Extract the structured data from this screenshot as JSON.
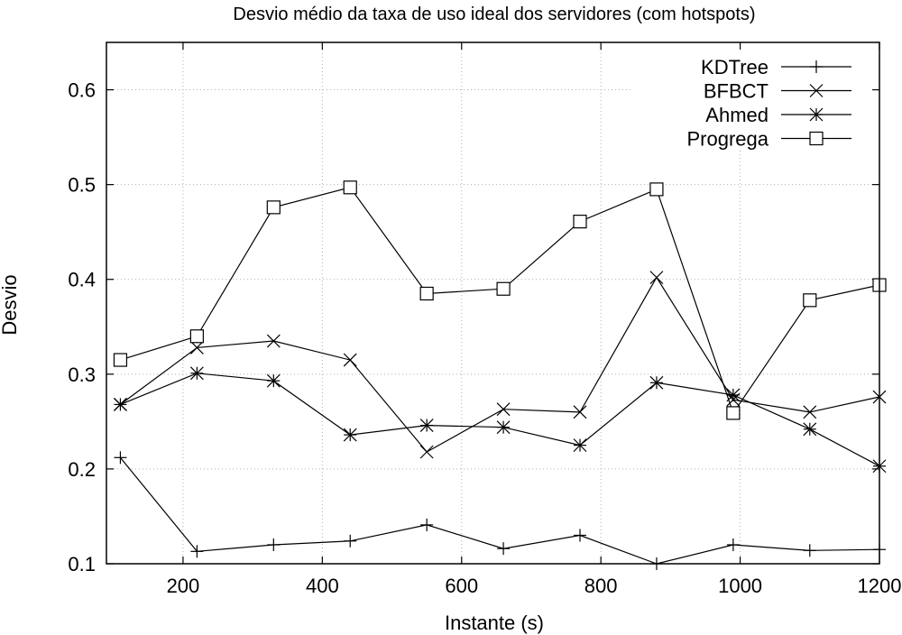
{
  "chart_data": {
    "type": "line",
    "title": "Desvio médio da taxa de uso ideal dos servidores (com hotspots)",
    "xlabel": "Instante (s)",
    "ylabel": "Desvio",
    "xlim": [
      90,
      1200
    ],
    "ylim": [
      0.1,
      0.65
    ],
    "xticks": [
      200,
      400,
      600,
      800,
      1000,
      1200
    ],
    "yticks": [
      0.1,
      0.2,
      0.3,
      0.4,
      0.5,
      0.6
    ],
    "ytick_labels": [
      "0.1",
      "0.2",
      "0.3",
      "0.4",
      "0.5",
      "0.6"
    ],
    "grid": true,
    "legend_position": "top-right",
    "x": [
      110,
      220,
      330,
      440,
      550,
      660,
      770,
      880,
      990,
      1100,
      1200
    ],
    "series": [
      {
        "name": "KDTree",
        "marker": "plus",
        "values": [
          0.212,
          0.113,
          0.12,
          0.124,
          0.141,
          0.116,
          0.13,
          0.1,
          0.12,
          0.114,
          0.115
        ]
      },
      {
        "name": "BFBCT",
        "marker": "cross",
        "values": [
          0.268,
          0.328,
          0.335,
          0.315,
          0.218,
          0.263,
          0.26,
          0.402,
          0.273,
          0.26,
          0.276
        ]
      },
      {
        "name": "Ahmed",
        "marker": "star",
        "values": [
          0.268,
          0.301,
          0.293,
          0.236,
          0.246,
          0.244,
          0.225,
          0.291,
          0.278,
          0.242,
          0.203
        ]
      },
      {
        "name": "Progrega",
        "marker": "square",
        "values": [
          0.315,
          0.34,
          0.476,
          0.497,
          0.385,
          0.39,
          0.461,
          0.495,
          0.259,
          0.378,
          0.394
        ]
      }
    ]
  }
}
